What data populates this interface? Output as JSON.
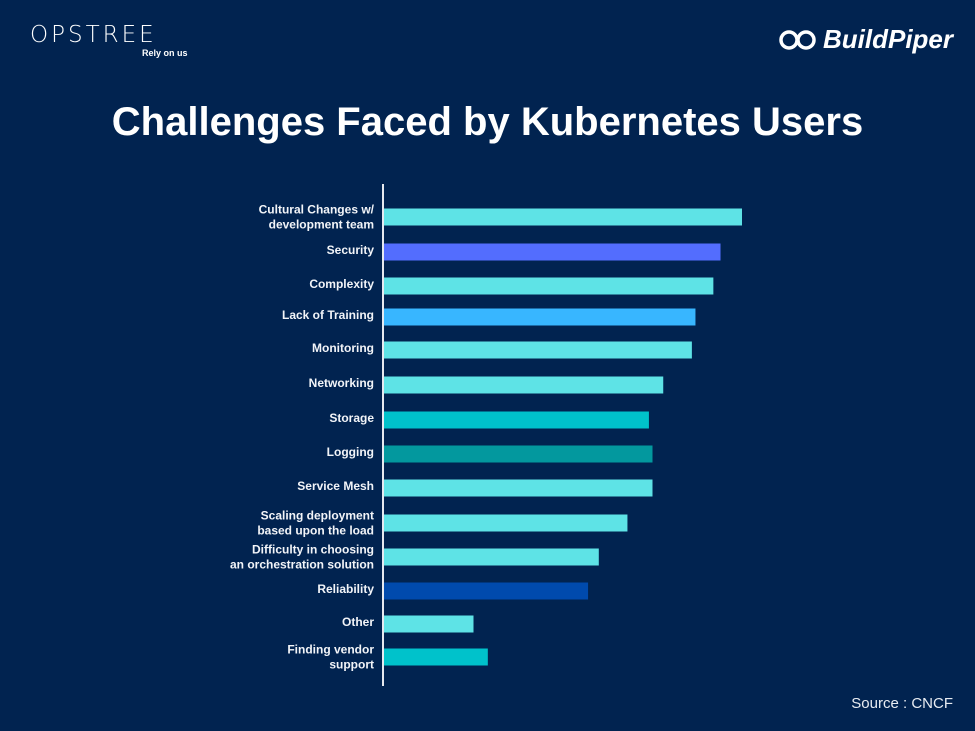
{
  "header": {
    "left_logo": {
      "text": "OPSTREE",
      "tagline": "Rely on us"
    },
    "right_logo": {
      "icon": "infinity-icon",
      "text": "BuildPiper"
    }
  },
  "footer": {
    "source": "Source : CNCF"
  },
  "chart_data": {
    "type": "bar",
    "orientation": "horizontal",
    "title": "Challenges Faced by Kubernetes Users",
    "xlabel": "",
    "ylabel": "",
    "value_units": "relative (no axis shown; estimated as % of longest bar)",
    "xlim": [
      0,
      100
    ],
    "grid": false,
    "legend": "none",
    "categories": [
      [
        "Cultural Changes w/",
        "development team"
      ],
      [
        "Security"
      ],
      [
        "Complexity"
      ],
      [
        "Lack of Training"
      ],
      [
        "Monitoring"
      ],
      [
        "Networking"
      ],
      [
        "Storage"
      ],
      [
        "Logging"
      ],
      [
        "Service Mesh"
      ],
      [
        "Scaling deployment",
        "based upon the load"
      ],
      [
        "Difficulty in choosing",
        "an orchestration solution"
      ],
      [
        "Reliability"
      ],
      [
        "Other"
      ],
      [
        "Finding vendor",
        "support"
      ]
    ],
    "values": [
      100,
      94,
      92,
      87,
      86,
      78,
      74,
      75,
      75,
      68,
      60,
      57,
      25,
      29
    ],
    "colors": [
      "#5ee3e6",
      "#536dfe",
      "#5ee3e6",
      "#38b6ff",
      "#5ee3e6",
      "#5ee3e6",
      "#00c2cb",
      "#03989e",
      "#5ee3e6",
      "#5ee3e6",
      "#5ee3e6",
      "#004aad",
      "#5ee3e6",
      "#00c2cb"
    ]
  }
}
